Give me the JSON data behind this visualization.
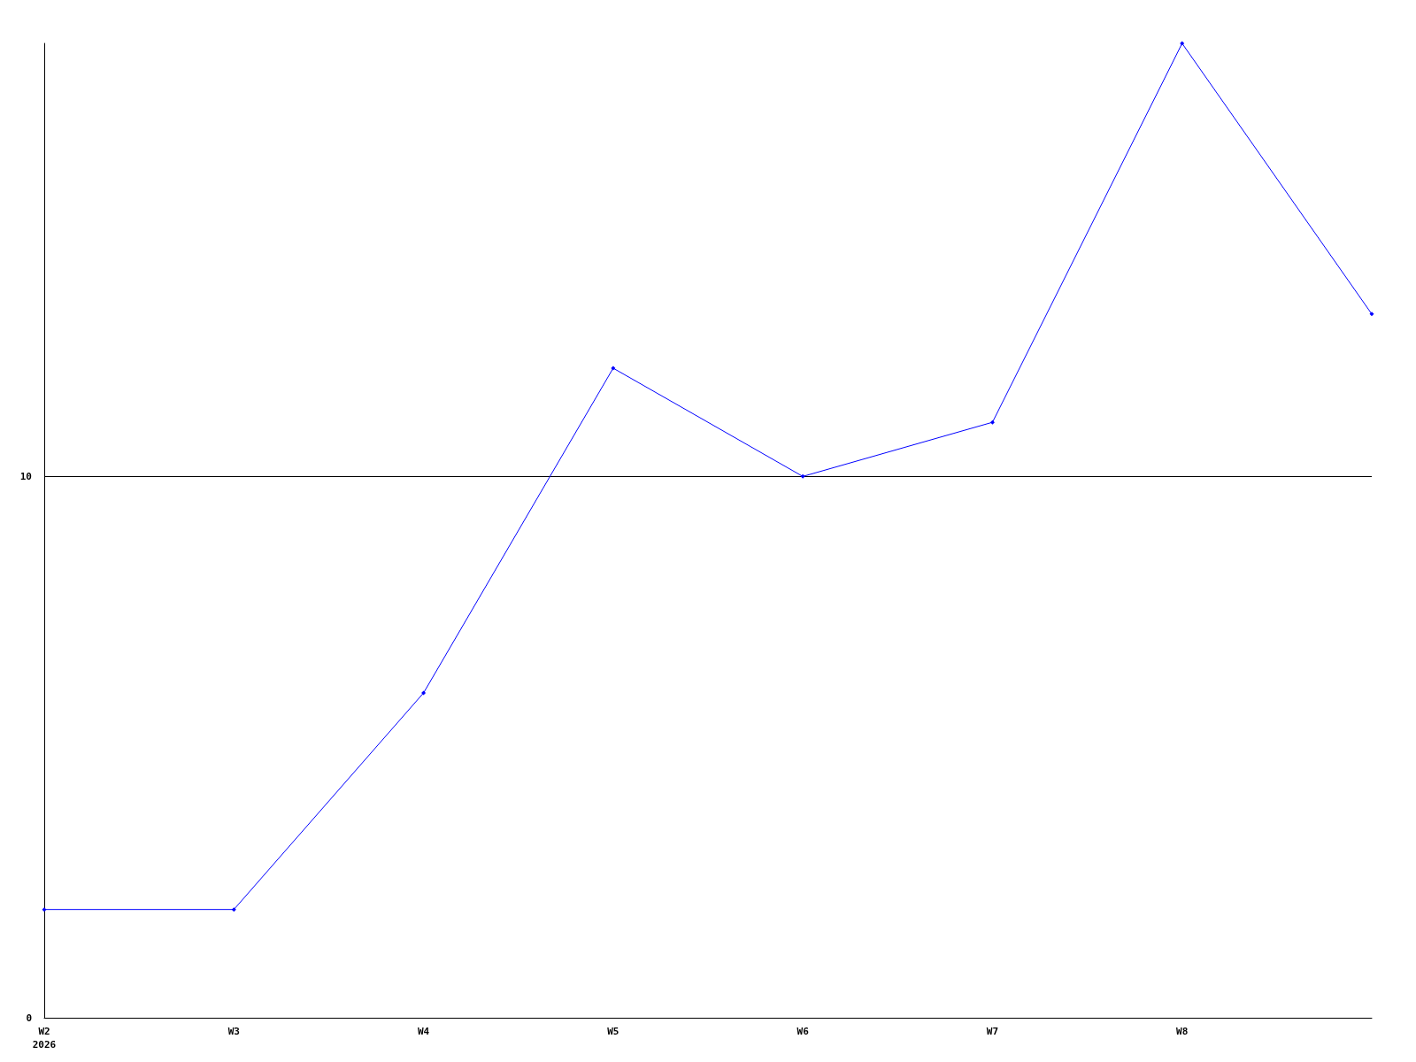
{
  "chart_data": {
    "type": "line",
    "categories": [
      "W2\n2026",
      "W3",
      "W4",
      "W5",
      "W6",
      "W7",
      "W8",
      null
    ],
    "series": [
      {
        "color": "#0000ff",
        "values": [
          2,
          2,
          6,
          12,
          10,
          11,
          18,
          13
        ]
      }
    ],
    "ylim": [
      0,
      18
    ],
    "yticks": [
      0,
      10
    ],
    "grid": "y",
    "marker": "diamond",
    "line_style": "solid"
  }
}
